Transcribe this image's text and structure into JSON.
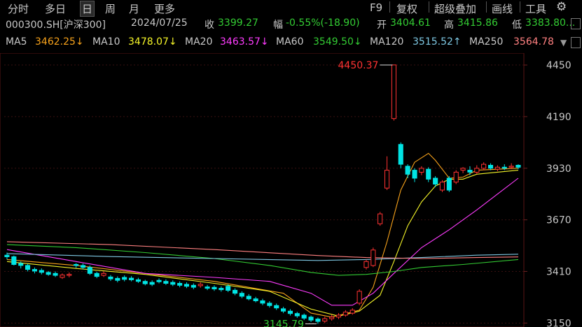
{
  "toolbar": {
    "left_tabs": [
      "分时",
      "多日",
      "日",
      "周",
      "月",
      "更多"
    ],
    "active_tab": "日",
    "right_items": [
      "F9",
      "复权",
      "超级叠加",
      "画线",
      "工具"
    ],
    "settings_icon": "gear-icon"
  },
  "quote": {
    "code": "000300.SH[沪深300]",
    "date": "2024/07/25",
    "close_label": "收",
    "close": "3399.27",
    "change_label": "幅",
    "change": "-0.55%(-18.90)",
    "open_label": "开",
    "open": "3404.61",
    "high_label": "高",
    "high": "3415.86",
    "low_label": "低",
    "low": "3383.80..."
  },
  "ma_bar": {
    "items": [
      {
        "label": "MA5",
        "value": "3462.25↓",
        "color": "#f7a21b"
      },
      {
        "label": "MA10",
        "value": "3478.07↓",
        "color": "#f5f528"
      },
      {
        "label": "MA20",
        "value": "3463.57↓",
        "color": "#ff3cff"
      },
      {
        "label": "MA60",
        "value": "3549.50↓",
        "color": "#33cc33"
      },
      {
        "label": "MA120",
        "value": "3515.52↑",
        "color": "#7ec8e3"
      },
      {
        "label": "MA250",
        "value": "3564.78",
        "color": "#ff8080"
      }
    ],
    "collapse_icon": "▼"
  },
  "colors": {
    "up": "#ff3232",
    "down": "#00e4e4",
    "axis_text": "#c8c8c8",
    "grid": "#3a1010"
  },
  "chart_data": {
    "type": "candlestick",
    "y_ticks": [
      "4450",
      "4190",
      "3930",
      "3670",
      "3410",
      "3150"
    ],
    "ylim": [
      3130,
      4510
    ],
    "annotations": {
      "high": "4450.37",
      "low": "3145.79"
    },
    "candles": [
      [
        3492,
        3484,
        3505,
        3470
      ],
      [
        3484,
        3445,
        3490,
        3440
      ],
      [
        3450,
        3440,
        3460,
        3425
      ],
      [
        3440,
        3420,
        3448,
        3410
      ],
      [
        3420,
        3412,
        3430,
        3400
      ],
      [
        3415,
        3405,
        3425,
        3395
      ],
      [
        3405,
        3395,
        3412,
        3388
      ],
      [
        3400,
        3390,
        3410,
        3382
      ],
      [
        3380,
        3392,
        3400,
        3372
      ],
      [
        3390,
        3395,
        3405,
        3380
      ],
      [
        3445,
        3440,
        3452,
        3428
      ],
      [
        3440,
        3430,
        3450,
        3420
      ],
      [
        3430,
        3400,
        3440,
        3392
      ],
      [
        3400,
        3385,
        3408,
        3376
      ],
      [
        3390,
        3400,
        3410,
        3382
      ],
      [
        3382,
        3372,
        3392,
        3362
      ],
      [
        3375,
        3365,
        3385,
        3355
      ],
      [
        3380,
        3370,
        3390,
        3360
      ],
      [
        3376,
        3368,
        3386,
        3360
      ],
      [
        3368,
        3360,
        3378,
        3352
      ],
      [
        3360,
        3348,
        3368,
        3340
      ],
      [
        3355,
        3345,
        3365,
        3336
      ],
      [
        3365,
        3358,
        3375,
        3350
      ],
      [
        3360,
        3350,
        3370,
        3342
      ],
      [
        3355,
        3345,
        3365,
        3336
      ],
      [
        3350,
        3340,
        3360,
        3330
      ],
      [
        3345,
        3335,
        3355,
        3326
      ],
      [
        3340,
        3330,
        3350,
        3320
      ],
      [
        3338,
        3345,
        3355,
        3328
      ],
      [
        3332,
        3325,
        3342,
        3316
      ],
      [
        3330,
        3322,
        3340,
        3312
      ],
      [
        3325,
        3318,
        3335,
        3308
      ],
      [
        3335,
        3315,
        3345,
        3306
      ],
      [
        3315,
        3300,
        3325,
        3290
      ],
      [
        3300,
        3285,
        3310,
        3275
      ],
      [
        3285,
        3272,
        3296,
        3264
      ],
      [
        3272,
        3262,
        3282,
        3254
      ],
      [
        3262,
        3250,
        3272,
        3240
      ],
      [
        3250,
        3238,
        3260,
        3228
      ],
      [
        3238,
        3226,
        3248,
        3216
      ],
      [
        3222,
        3210,
        3232,
        3200
      ],
      [
        3210,
        3198,
        3220,
        3188
      ],
      [
        3198,
        3186,
        3206,
        3176
      ],
      [
        3190,
        3175,
        3198,
        3165
      ],
      [
        3180,
        3165,
        3188,
        3155
      ],
      [
        3170,
        3158,
        3178,
        3145.79
      ],
      [
        3160,
        3172,
        3182,
        3150
      ],
      [
        3172,
        3180,
        3192,
        3162
      ],
      [
        3180,
        3190,
        3200,
        3170
      ],
      [
        3190,
        3205,
        3215,
        3182
      ],
      [
        3200,
        3215,
        3225,
        3192
      ],
      [
        3250,
        3310,
        3320,
        3240
      ],
      [
        3430,
        3460,
        3470,
        3420
      ],
      [
        3440,
        3518,
        3530,
        3432
      ],
      [
        3650,
        3700,
        3710,
        3640
      ],
      [
        3830,
        3920,
        3990,
        3820
      ],
      [
        4180,
        4450.37,
        4450.37,
        4170
      ],
      [
        4050,
        3950,
        4060,
        3930
      ],
      [
        3940,
        3900,
        3950,
        3880
      ],
      [
        3920,
        3880,
        3930,
        3860
      ],
      [
        3910,
        3930,
        3940,
        3895
      ],
      [
        3925,
        3875,
        3935,
        3860
      ],
      [
        3880,
        3850,
        3890,
        3835
      ],
      [
        3820,
        3860,
        3870,
        3810
      ],
      [
        3880,
        3820,
        3890,
        3810
      ],
      [
        3860,
        3910,
        3920,
        3850
      ],
      [
        3920,
        3930,
        3935,
        3905
      ],
      [
        3920,
        3910,
        3940,
        3895
      ],
      [
        3910,
        3930,
        3945,
        3900
      ],
      [
        3930,
        3950,
        3960,
        3920
      ],
      [
        3945,
        3930,
        3955,
        3920
      ],
      [
        3925,
        3935,
        3945,
        3915
      ],
      [
        3935,
        3930,
        3950,
        3920
      ],
      [
        3935,
        3940,
        3955,
        3925
      ],
      [
        3945,
        3935,
        3950,
        3925
      ]
    ],
    "ma_series": [
      {
        "name": "MA5",
        "color": "#f7a21b",
        "values": [
          [
            0,
            3470
          ],
          [
            10,
            3440
          ],
          [
            20,
            3400
          ],
          [
            30,
            3360
          ],
          [
            40,
            3300
          ],
          [
            44,
            3200
          ],
          [
            47,
            3180
          ],
          [
            51,
            3215
          ],
          [
            53,
            3330
          ],
          [
            55,
            3560
          ],
          [
            57,
            3820
          ],
          [
            59,
            3960
          ],
          [
            61,
            4005
          ],
          [
            62,
            3970
          ],
          [
            64,
            3880
          ],
          [
            66,
            3885
          ],
          [
            68,
            3920
          ],
          [
            71,
            3925
          ],
          [
            74,
            3930
          ]
        ]
      },
      {
        "name": "MA10",
        "color": "#f5f528",
        "values": [
          [
            0,
            3460
          ],
          [
            10,
            3425
          ],
          [
            20,
            3395
          ],
          [
            30,
            3350
          ],
          [
            38,
            3310
          ],
          [
            44,
            3220
          ],
          [
            48,
            3185
          ],
          [
            51,
            3210
          ],
          [
            54,
            3290
          ],
          [
            56,
            3460
          ],
          [
            58,
            3640
          ],
          [
            60,
            3760
          ],
          [
            62,
            3840
          ],
          [
            64,
            3875
          ],
          [
            66,
            3875
          ],
          [
            68,
            3900
          ],
          [
            71,
            3910
          ],
          [
            74,
            3920
          ]
        ]
      },
      {
        "name": "MA20",
        "color": "#ff3cff",
        "values": [
          [
            0,
            3520
          ],
          [
            10,
            3460
          ],
          [
            20,
            3400
          ],
          [
            30,
            3380
          ],
          [
            38,
            3360
          ],
          [
            44,
            3300
          ],
          [
            47,
            3240
          ],
          [
            50,
            3240
          ],
          [
            53,
            3300
          ],
          [
            56,
            3400
          ],
          [
            60,
            3530
          ],
          [
            64,
            3620
          ],
          [
            68,
            3720
          ],
          [
            71,
            3800
          ],
          [
            74,
            3880
          ]
        ]
      },
      {
        "name": "MA60",
        "color": "#33cc33",
        "values": [
          [
            0,
            3545
          ],
          [
            10,
            3530
          ],
          [
            20,
            3505
          ],
          [
            30,
            3475
          ],
          [
            38,
            3440
          ],
          [
            44,
            3405
          ],
          [
            48,
            3390
          ],
          [
            52,
            3395
          ],
          [
            56,
            3410
          ],
          [
            60,
            3430
          ],
          [
            66,
            3445
          ],
          [
            74,
            3470
          ]
        ]
      },
      {
        "name": "MA120",
        "color": "#7ec8e3",
        "values": [
          [
            0,
            3500
          ],
          [
            15,
            3485
          ],
          [
            30,
            3475
          ],
          [
            45,
            3465
          ],
          [
            52,
            3470
          ],
          [
            60,
            3480
          ],
          [
            68,
            3492
          ],
          [
            74,
            3497
          ]
        ]
      },
      {
        "name": "MA250",
        "color": "#ff8080",
        "values": [
          [
            0,
            3560
          ],
          [
            15,
            3545
          ],
          [
            30,
            3520
          ],
          [
            45,
            3490
          ],
          [
            52,
            3480
          ],
          [
            60,
            3475
          ],
          [
            68,
            3480
          ],
          [
            74,
            3483
          ]
        ]
      }
    ]
  }
}
